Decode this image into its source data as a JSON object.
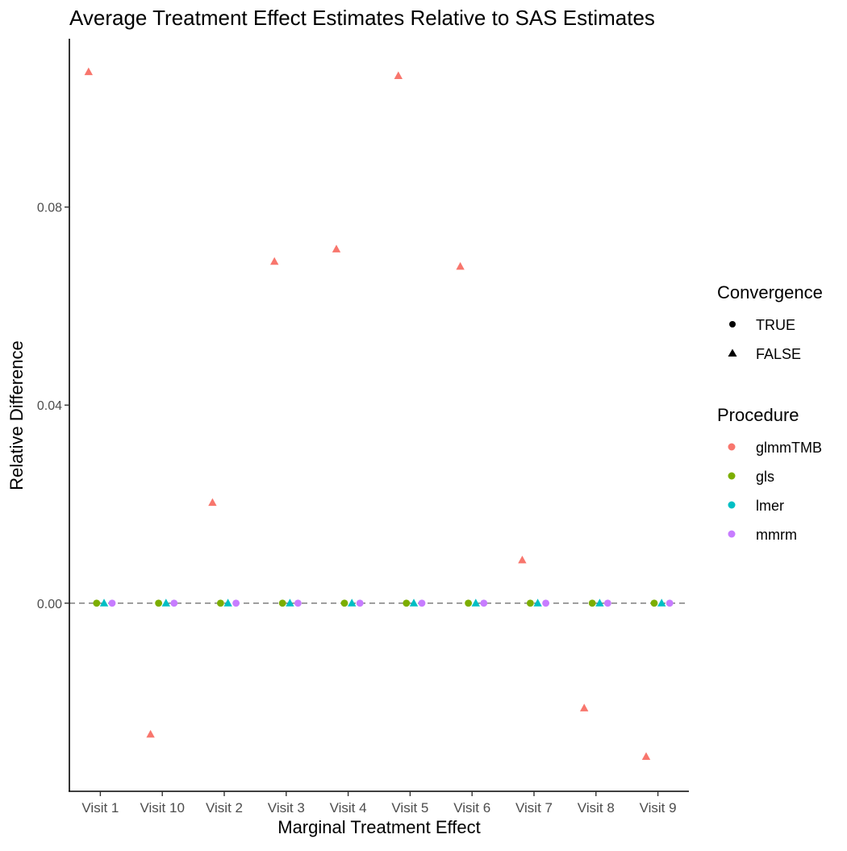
{
  "chart_data": {
    "type": "scatter",
    "title": "Average Treatment Effect Estimates Relative to SAS Estimates",
    "xlabel": "Marginal Treatment Effect",
    "ylabel": "Relative Difference",
    "categories": [
      "Visit 1",
      "Visit 10",
      "Visit 2",
      "Visit 3",
      "Visit 4",
      "Visit 5",
      "Visit 6",
      "Visit 7",
      "Visit 8",
      "Visit 9"
    ],
    "ylim": [
      -0.038,
      0.114
    ],
    "yticks": [
      0.0,
      0.04,
      0.08
    ],
    "ytick_labels": [
      "0.00",
      "0.04",
      "0.08"
    ],
    "reference_line": {
      "y": 0,
      "style": "dashed",
      "color": "#808080"
    },
    "grid": false,
    "legend_position": "right",
    "legends": {
      "convergence": {
        "title": "Convergence",
        "items": [
          {
            "label": "TRUE",
            "shape": "circle"
          },
          {
            "label": "FALSE",
            "shape": "triangle"
          }
        ]
      },
      "procedure": {
        "title": "Procedure",
        "items": [
          {
            "label": "glmmTMB",
            "color": "#F8766D"
          },
          {
            "label": "gls",
            "color": "#7CAE00"
          },
          {
            "label": "lmer",
            "color": "#00BFC4"
          },
          {
            "label": "mmrm",
            "color": "#C77CFF"
          }
        ]
      }
    },
    "series": [
      {
        "name": "glmmTMB",
        "color": "#F8766D",
        "offset": -0.19,
        "converged": [
          false,
          false,
          false,
          false,
          false,
          false,
          false,
          false,
          false,
          false
        ],
        "values": [
          0.1073,
          -0.0265,
          0.0203,
          0.069,
          0.0715,
          0.1065,
          0.068,
          0.0087,
          -0.0212,
          -0.031
        ]
      },
      {
        "name": "gls",
        "color": "#7CAE00",
        "offset": -0.06,
        "converged": [
          true,
          true,
          true,
          true,
          true,
          true,
          true,
          true,
          true,
          true
        ],
        "values": [
          0,
          0,
          0,
          0,
          0,
          0,
          0,
          0,
          0,
          0
        ]
      },
      {
        "name": "lmer",
        "color": "#00BFC4",
        "offset": 0.06,
        "converged": [
          false,
          false,
          false,
          false,
          false,
          false,
          false,
          false,
          false,
          false
        ],
        "values": [
          0,
          0,
          0,
          0,
          0,
          0,
          0,
          0,
          0,
          0
        ]
      },
      {
        "name": "mmrm",
        "color": "#C77CFF",
        "offset": 0.19,
        "converged": [
          true,
          true,
          true,
          true,
          true,
          true,
          true,
          true,
          true,
          true
        ],
        "values": [
          0,
          0,
          0,
          0,
          0,
          0,
          0,
          0,
          0,
          0
        ]
      }
    ]
  }
}
